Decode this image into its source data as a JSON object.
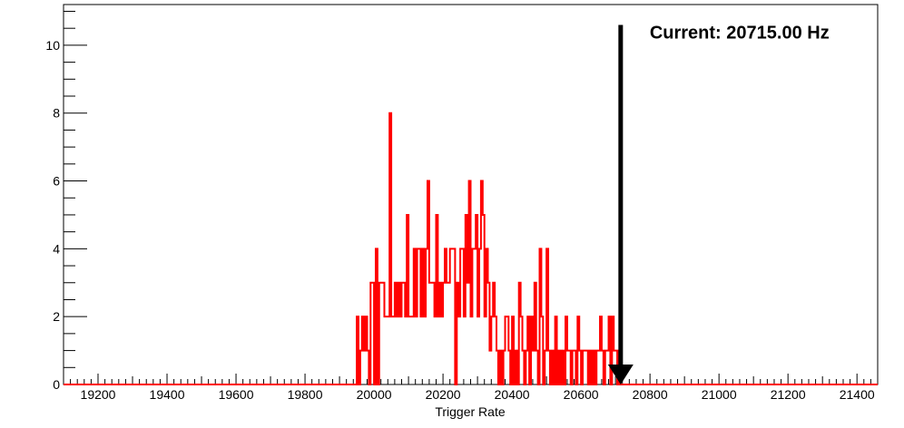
{
  "chart_data": {
    "type": "histogram",
    "title": "",
    "xlabel": "Trigger Rate",
    "ylabel": "",
    "xlim": [
      19100,
      21460
    ],
    "ylim": [
      0,
      11.2
    ],
    "x_ticks": [
      19200,
      19400,
      19600,
      19800,
      20000,
      20200,
      20400,
      20600,
      20800,
      21000,
      21200,
      21400
    ],
    "y_ticks": [
      0,
      2,
      4,
      6,
      8,
      10
    ],
    "grid": false,
    "legend": "none",
    "bin_width": 5,
    "series": [
      {
        "color": "#ff0000",
        "bin_width": 5,
        "bins": [
          [
            19950,
            2
          ],
          [
            19955,
            0
          ],
          [
            19960,
            1
          ],
          [
            19965,
            2
          ],
          [
            19970,
            1
          ],
          [
            19975,
            2
          ],
          [
            19980,
            1
          ],
          [
            19985,
            0
          ],
          [
            19990,
            3
          ],
          [
            19995,
            3
          ],
          [
            20000,
            0
          ],
          [
            20005,
            4
          ],
          [
            20010,
            0
          ],
          [
            20015,
            3
          ],
          [
            20020,
            3
          ],
          [
            20025,
            3
          ],
          [
            20030,
            2
          ],
          [
            20035,
            2
          ],
          [
            20040,
            2
          ],
          [
            20045,
            8
          ],
          [
            20050,
            2
          ],
          [
            20055,
            2
          ],
          [
            20060,
            3
          ],
          [
            20065,
            2
          ],
          [
            20070,
            3
          ],
          [
            20075,
            2
          ],
          [
            20080,
            3
          ],
          [
            20085,
            3
          ],
          [
            20090,
            2
          ],
          [
            20095,
            5
          ],
          [
            20100,
            2
          ],
          [
            20105,
            2
          ],
          [
            20110,
            2
          ],
          [
            20115,
            4
          ],
          [
            20120,
            2
          ],
          [
            20125,
            4
          ],
          [
            20130,
            4
          ],
          [
            20135,
            2
          ],
          [
            20140,
            4
          ],
          [
            20145,
            2
          ],
          [
            20150,
            4
          ],
          [
            20155,
            6
          ],
          [
            20160,
            3
          ],
          [
            20165,
            3
          ],
          [
            20170,
            3
          ],
          [
            20175,
            2
          ],
          [
            20180,
            5
          ],
          [
            20185,
            2
          ],
          [
            20190,
            3
          ],
          [
            20195,
            2
          ],
          [
            20200,
            3
          ],
          [
            20205,
            4
          ],
          [
            20210,
            3
          ],
          [
            20215,
            3
          ],
          [
            20220,
            4
          ],
          [
            20225,
            4
          ],
          [
            20230,
            4
          ],
          [
            20235,
            0
          ],
          [
            20240,
            3
          ],
          [
            20245,
            2
          ],
          [
            20250,
            4
          ],
          [
            20255,
            4
          ],
          [
            20260,
            2
          ],
          [
            20265,
            5
          ],
          [
            20270,
            3
          ],
          [
            20275,
            6
          ],
          [
            20280,
            2
          ],
          [
            20285,
            4
          ],
          [
            20290,
            4
          ],
          [
            20295,
            5
          ],
          [
            20300,
            2
          ],
          [
            20305,
            4
          ],
          [
            20310,
            6
          ],
          [
            20315,
            5
          ],
          [
            20320,
            2
          ],
          [
            20325,
            4
          ],
          [
            20330,
            3
          ],
          [
            20335,
            1
          ],
          [
            20340,
            2
          ],
          [
            20345,
            3
          ],
          [
            20350,
            2
          ],
          [
            20355,
            1
          ],
          [
            20360,
            0
          ],
          [
            20365,
            1
          ],
          [
            20370,
            0
          ],
          [
            20375,
            1
          ],
          [
            20380,
            2
          ],
          [
            20385,
            2
          ],
          [
            20390,
            1
          ],
          [
            20395,
            0
          ],
          [
            20400,
            2
          ],
          [
            20405,
            0
          ],
          [
            20410,
            1
          ],
          [
            20415,
            0
          ],
          [
            20420,
            3
          ],
          [
            20425,
            2
          ],
          [
            20430,
            1
          ],
          [
            20435,
            0
          ],
          [
            20440,
            1
          ],
          [
            20445,
            2
          ],
          [
            20450,
            0
          ],
          [
            20455,
            2
          ],
          [
            20460,
            1
          ],
          [
            20465,
            3
          ],
          [
            20470,
            1
          ],
          [
            20475,
            0
          ],
          [
            20480,
            4
          ],
          [
            20485,
            2
          ],
          [
            20490,
            0
          ],
          [
            20495,
            1
          ],
          [
            20500,
            4
          ],
          [
            20505,
            1
          ],
          [
            20510,
            0
          ],
          [
            20515,
            1
          ],
          [
            20520,
            0
          ],
          [
            20525,
            2
          ],
          [
            20530,
            0
          ],
          [
            20535,
            1
          ],
          [
            20540,
            0
          ],
          [
            20545,
            1
          ],
          [
            20550,
            0
          ],
          [
            20555,
            2
          ],
          [
            20560,
            1
          ],
          [
            20565,
            1
          ],
          [
            20570,
            0
          ],
          [
            20575,
            1
          ],
          [
            20580,
            1
          ],
          [
            20585,
            0
          ],
          [
            20590,
            2
          ],
          [
            20595,
            1
          ],
          [
            20600,
            0
          ],
          [
            20605,
            1
          ],
          [
            20610,
            1
          ],
          [
            20615,
            1
          ],
          [
            20620,
            0
          ],
          [
            20625,
            1
          ],
          [
            20630,
            0
          ],
          [
            20635,
            1
          ],
          [
            20640,
            0
          ],
          [
            20645,
            1
          ],
          [
            20650,
            1
          ],
          [
            20655,
            2
          ],
          [
            20660,
            1
          ],
          [
            20665,
            0
          ],
          [
            20670,
            1
          ],
          [
            20675,
            1
          ],
          [
            20680,
            2
          ],
          [
            20685,
            0
          ],
          [
            20690,
            2
          ],
          [
            20695,
            1
          ],
          [
            20700,
            1
          ],
          [
            20705,
            0
          ],
          [
            20710,
            1
          ]
        ]
      }
    ],
    "annotations": [
      {
        "type": "arrow",
        "x": 20715,
        "y_top": 10.6,
        "y_bottom": 0
      },
      {
        "type": "text",
        "text": "Current: 20715.00 Hz",
        "x": 20715,
        "y": 10.3
      }
    ]
  }
}
